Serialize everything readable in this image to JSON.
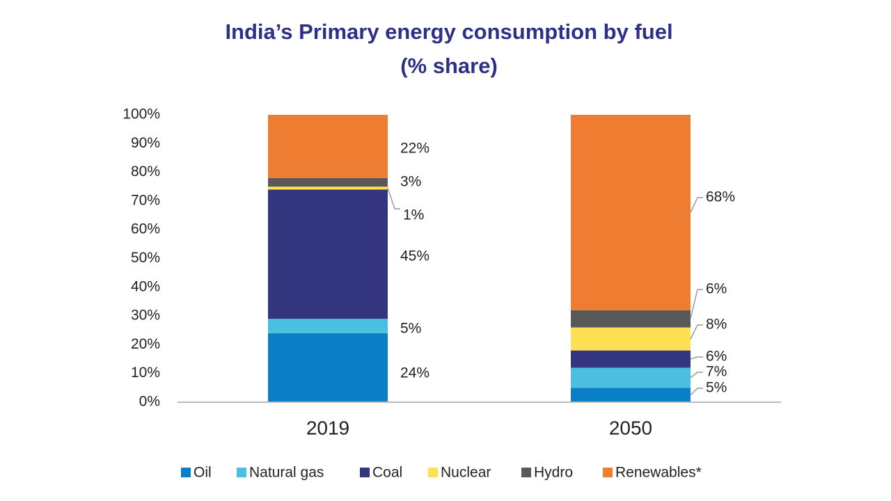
{
  "chart_data": {
    "type": "stacked_bar",
    "title": "India’s Primary energy consumption by fuel",
    "subtitle": "(% share)",
    "categories": [
      "2019",
      "2050"
    ],
    "series": [
      {
        "name": "Oil",
        "color": "#0a7fc8",
        "values": [
          24,
          5
        ],
        "value_labels": [
          "24%",
          "5%"
        ]
      },
      {
        "name": "Natural gas",
        "color": "#4bbfe0",
        "values": [
          5,
          7
        ],
        "value_labels": [
          "5%",
          "7%"
        ]
      },
      {
        "name": "Coal",
        "color": "#33357f",
        "values": [
          45,
          6
        ],
        "value_labels": [
          "45%",
          "6%"
        ]
      },
      {
        "name": "Nuclear",
        "color": "#ffe052",
        "values": [
          1,
          8
        ],
        "value_labels": [
          "1%",
          "8%"
        ]
      },
      {
        "name": "Hydro",
        "color": "#595959",
        "values": [
          3,
          6
        ],
        "value_labels": [
          "3%",
          "6%"
        ]
      },
      {
        "name": "Renewables*",
        "color": "#ee7d31",
        "values": [
          22,
          68
        ],
        "value_labels": [
          "22%",
          "68%"
        ]
      }
    ],
    "ylim": [
      0,
      100
    ],
    "yticks": [
      {
        "value": 0,
        "label": "0%"
      },
      {
        "value": 10,
        "label": "10%"
      },
      {
        "value": 20,
        "label": "20%"
      },
      {
        "value": 30,
        "label": "30%"
      },
      {
        "value": 40,
        "label": "40%"
      },
      {
        "value": 50,
        "label": "50%"
      },
      {
        "value": 60,
        "label": "60%"
      },
      {
        "value": 70,
        "label": "70%"
      },
      {
        "value": 80,
        "label": "80%"
      },
      {
        "value": 90,
        "label": "90%"
      },
      {
        "value": 100,
        "label": "100%"
      }
    ],
    "legend": "bottom"
  }
}
